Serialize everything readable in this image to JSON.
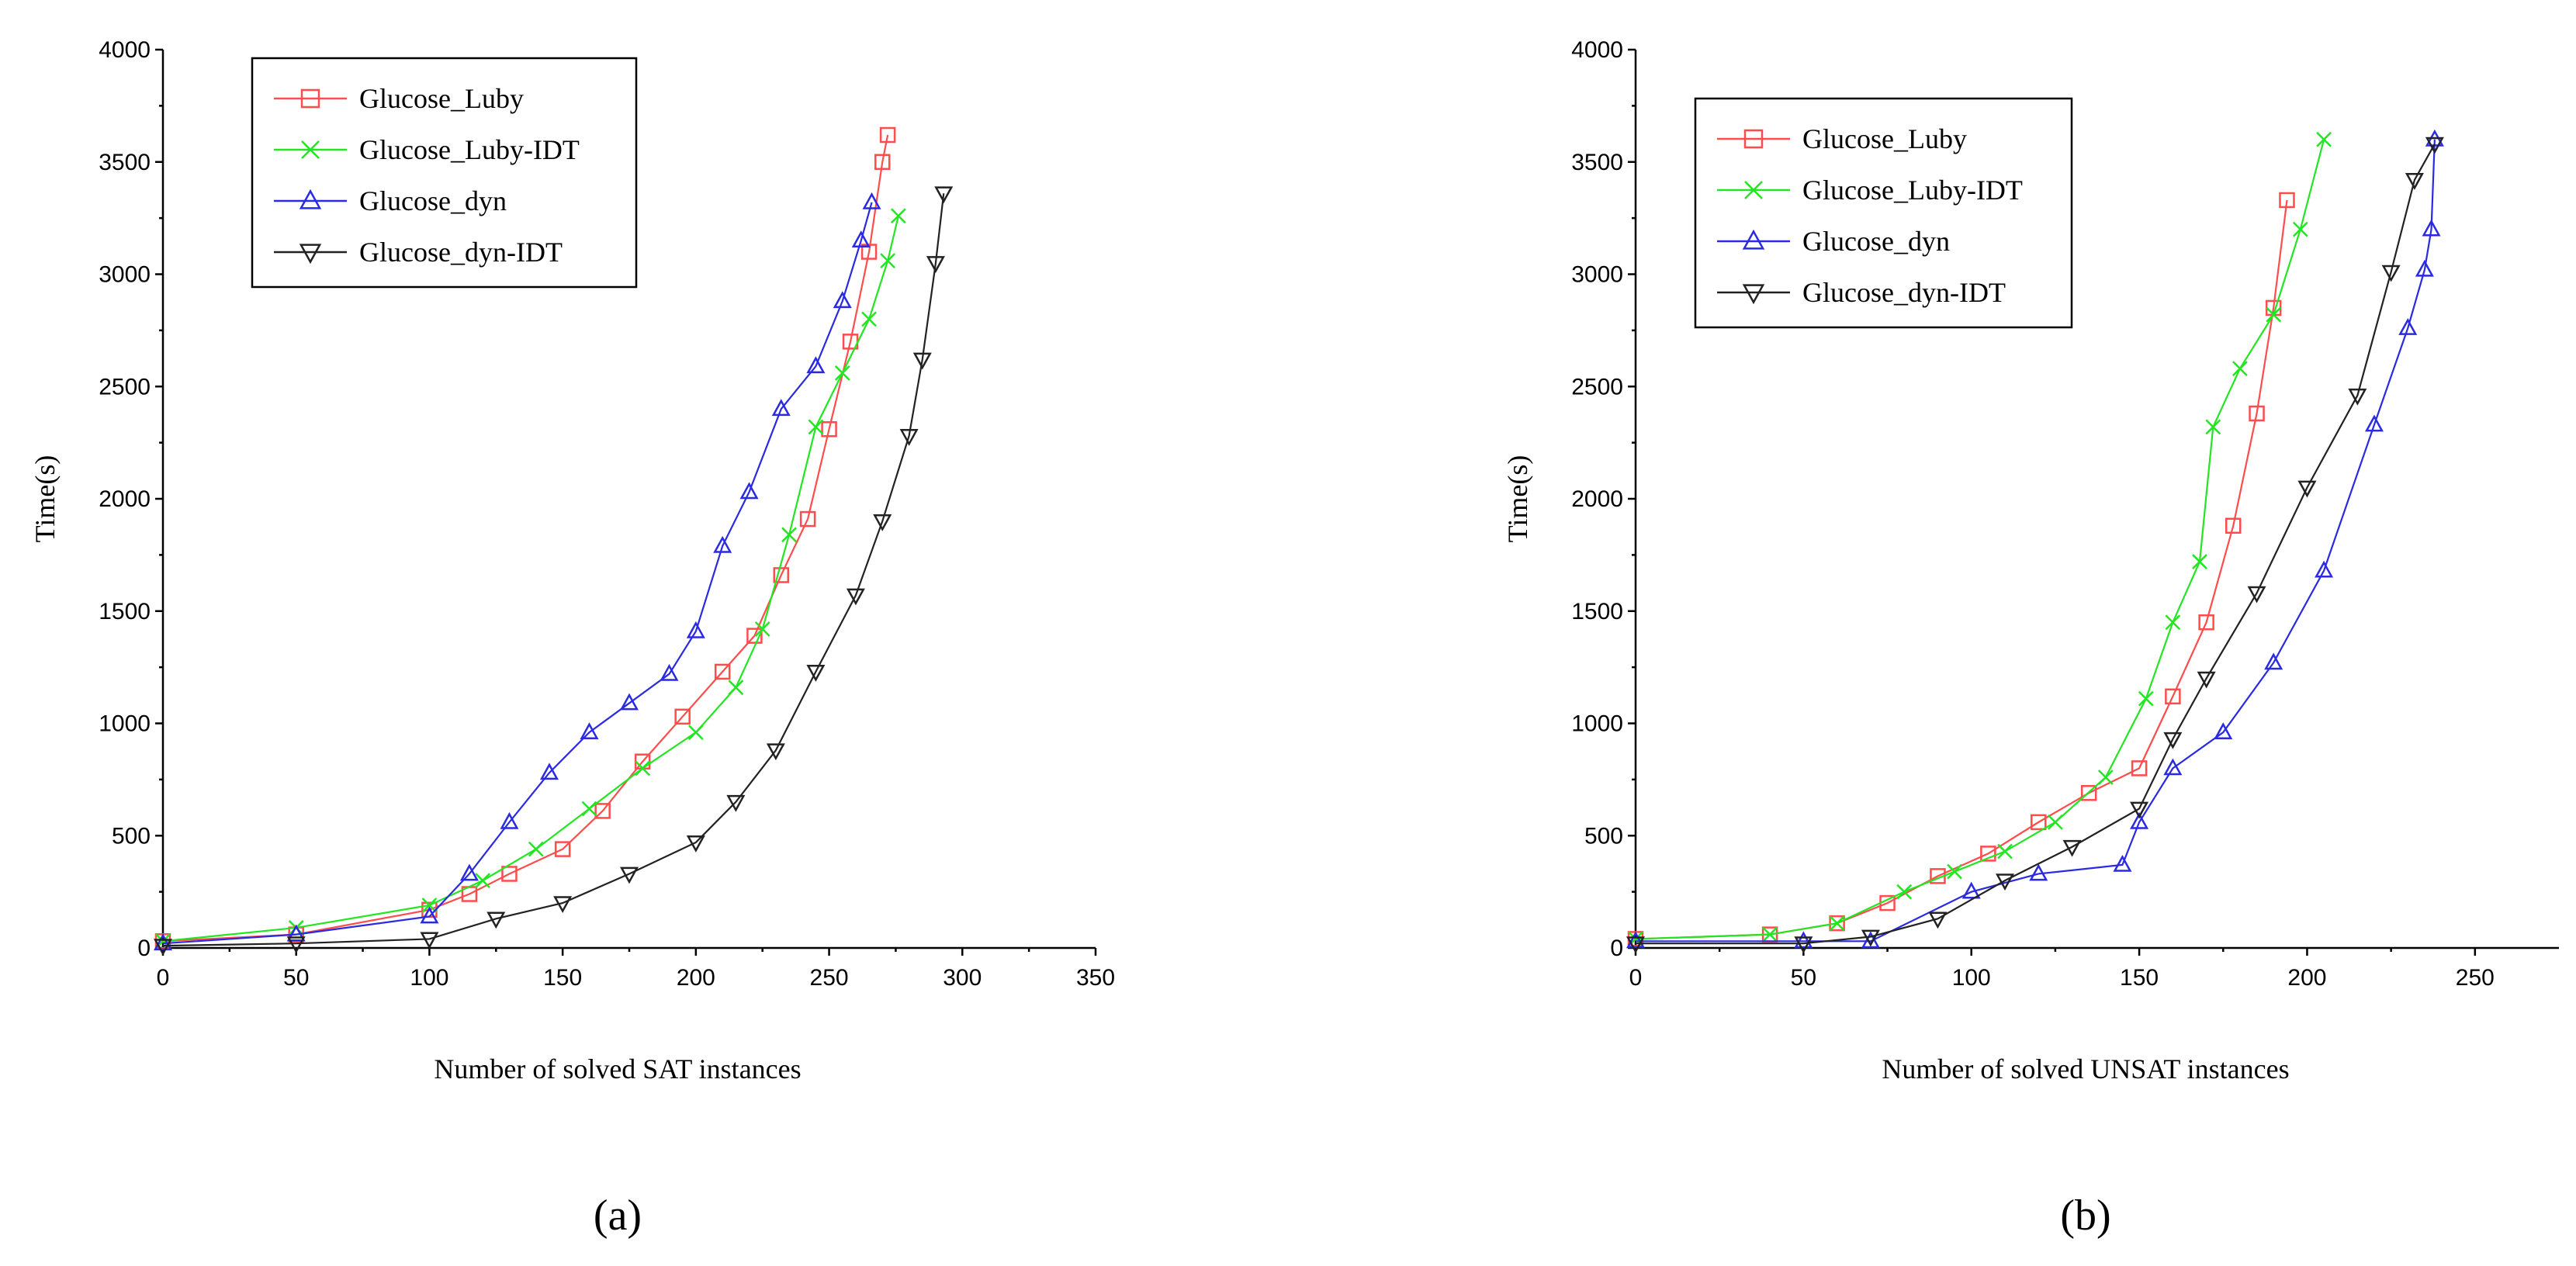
{
  "chart_data": [
    {
      "type": "line",
      "panel_label": "(a)",
      "title": "",
      "xlabel": "Number of solved SAT instances",
      "ylabel": "Time(s)",
      "xlim": [
        0,
        350
      ],
      "ylim": [
        0,
        4000
      ],
      "xticks": [
        0,
        50,
        100,
        150,
        200,
        250,
        300,
        350
      ],
      "yticks": [
        0,
        500,
        1000,
        1500,
        2000,
        2500,
        3000,
        3500,
        4000
      ],
      "grid": false,
      "legend_position": "top-left",
      "series": [
        {
          "name": "Glucose_Luby",
          "color": "#ff4c4c",
          "marker": "square",
          "x": [
            0,
            50,
            100,
            115,
            130,
            150,
            165,
            180,
            195,
            210,
            222,
            232,
            242,
            250,
            258,
            265,
            270,
            272
          ],
          "y": [
            30,
            60,
            170,
            240,
            330,
            440,
            610,
            830,
            1030,
            1230,
            1390,
            1660,
            1910,
            2310,
            2700,
            3100,
            3500,
            3620
          ]
        },
        {
          "name": "Glucose_Luby-IDT",
          "color": "#22e622",
          "marker": "x",
          "x": [
            0,
            50,
            100,
            120,
            140,
            160,
            180,
            200,
            215,
            225,
            235,
            245,
            255,
            265,
            272,
            276
          ],
          "y": [
            30,
            90,
            190,
            300,
            440,
            620,
            800,
            960,
            1160,
            1420,
            1840,
            2320,
            2560,
            2800,
            3060,
            3260
          ]
        },
        {
          "name": "Glucose_dyn",
          "color": "#2a2ae0",
          "marker": "triangle-up",
          "x": [
            0,
            50,
            100,
            115,
            130,
            145,
            160,
            175,
            190,
            200,
            210,
            220,
            232,
            245,
            255,
            262,
            266
          ],
          "y": [
            20,
            60,
            140,
            330,
            560,
            780,
            960,
            1090,
            1220,
            1410,
            1790,
            2030,
            2400,
            2590,
            2880,
            3150,
            3320
          ]
        },
        {
          "name": "Glucose_dyn-IDT",
          "color": "#222222",
          "marker": "triangle-down",
          "x": [
            0,
            50,
            100,
            125,
            150,
            175,
            200,
            215,
            230,
            245,
            260,
            270,
            280,
            285,
            290,
            293
          ],
          "y": [
            10,
            20,
            40,
            130,
            200,
            330,
            470,
            650,
            880,
            1230,
            1570,
            1900,
            2280,
            2620,
            3050,
            3360
          ]
        }
      ]
    },
    {
      "type": "line",
      "panel_label": "(b)",
      "title": "",
      "xlabel": "Number of solved UNSAT instances",
      "ylabel": "Time(s)",
      "xlim": [
        0,
        275
      ],
      "ylim": [
        0,
        4000
      ],
      "xticks": [
        0,
        50,
        100,
        150,
        200,
        250
      ],
      "yticks": [
        0,
        500,
        1000,
        1500,
        2000,
        2500,
        3000,
        3500,
        4000
      ],
      "grid": false,
      "legend_position": "top-left",
      "series": [
        {
          "name": "Glucose_Luby",
          "color": "#ff4c4c",
          "marker": "square",
          "x": [
            0,
            40,
            60,
            75,
            90,
            105,
            120,
            135,
            150,
            160,
            170,
            178,
            185,
            190,
            194
          ],
          "y": [
            40,
            60,
            110,
            200,
            320,
            420,
            560,
            690,
            800,
            1120,
            1450,
            1880,
            2380,
            2850,
            3330
          ]
        },
        {
          "name": "Glucose_Luby-IDT",
          "color": "#22e622",
          "marker": "x",
          "x": [
            0,
            40,
            60,
            80,
            95,
            110,
            125,
            140,
            152,
            160,
            168,
            172,
            180,
            190,
            198,
            205
          ],
          "y": [
            40,
            60,
            110,
            250,
            340,
            430,
            560,
            760,
            1110,
            1450,
            1720,
            2320,
            2580,
            2820,
            3200,
            3600
          ]
        },
        {
          "name": "Glucose_dyn",
          "color": "#2a2ae0",
          "marker": "triangle-up",
          "x": [
            0,
            50,
            70,
            100,
            120,
            145,
            150,
            160,
            175,
            190,
            205,
            220,
            230,
            235,
            237,
            238
          ],
          "y": [
            30,
            30,
            30,
            250,
            330,
            370,
            560,
            800,
            960,
            1270,
            1680,
            2330,
            2760,
            3020,
            3200,
            3600
          ]
        },
        {
          "name": "Glucose_dyn-IDT",
          "color": "#222222",
          "marker": "triangle-down",
          "x": [
            0,
            50,
            70,
            90,
            110,
            130,
            150,
            160,
            170,
            185,
            200,
            215,
            225,
            232,
            238
          ],
          "y": [
            20,
            20,
            50,
            130,
            300,
            450,
            620,
            930,
            1200,
            1580,
            2050,
            2460,
            3010,
            3420,
            3580
          ]
        }
      ]
    }
  ]
}
